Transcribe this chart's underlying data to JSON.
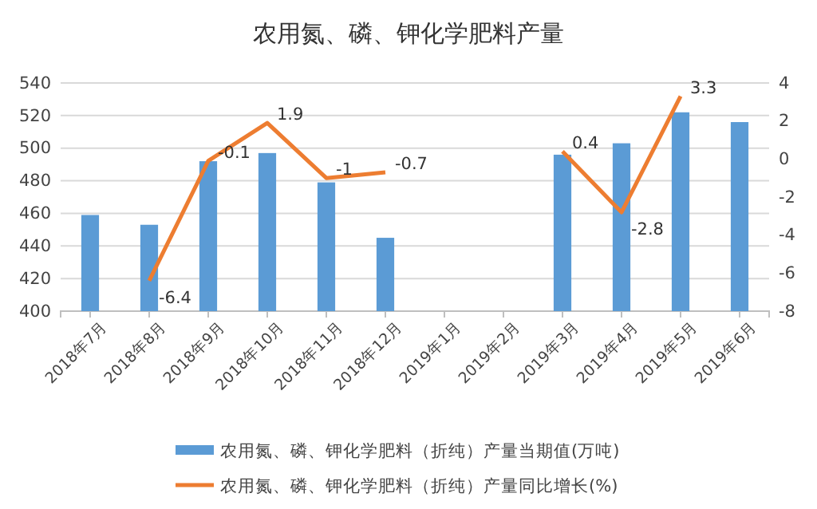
{
  "chart_data": {
    "type": "bar",
    "title": "农用氮、磷、钾化学肥料产量",
    "categories": [
      "2018年7月",
      "2018年8月",
      "2018年9月",
      "2018年10月",
      "2018年11月",
      "2018年12月",
      "2019年1月",
      "2019年2月",
      "2019年3月",
      "2019年4月",
      "2019年5月",
      "2019年6月"
    ],
    "series": [
      {
        "name": "农用氮、磷、钾化学肥料（折纯）产量当期值(万吨)",
        "color": "#5b9bd5",
        "values": [
          459,
          453,
          492,
          497,
          479,
          445,
          null,
          null,
          496,
          503,
          522,
          516
        ]
      },
      {
        "name": "农用氮、磷、钾化学肥料（折纯）产量同比增长(%)",
        "type": "line",
        "axis": "y2",
        "color": "#ed7d31",
        "values": [
          null,
          -6.4,
          -0.1,
          1.9,
          -1,
          -0.7,
          null,
          null,
          0.4,
          -2.8,
          3.3,
          null
        ],
        "value_labels": [
          null,
          "-6.4",
          "-0.1",
          "1.9",
          "-1",
          "-0.7",
          null,
          null,
          "0.4",
          "-2.8",
          "3.3",
          null
        ]
      }
    ],
    "ylim": [
      400,
      540
    ],
    "yticks": [
      400,
      420,
      440,
      460,
      480,
      500,
      520,
      540
    ],
    "y2lim": [
      -8,
      4
    ],
    "y2ticks": [
      -8,
      -6,
      -4,
      -2,
      0,
      2,
      4
    ],
    "grid": "y",
    "legend": "bottom"
  }
}
